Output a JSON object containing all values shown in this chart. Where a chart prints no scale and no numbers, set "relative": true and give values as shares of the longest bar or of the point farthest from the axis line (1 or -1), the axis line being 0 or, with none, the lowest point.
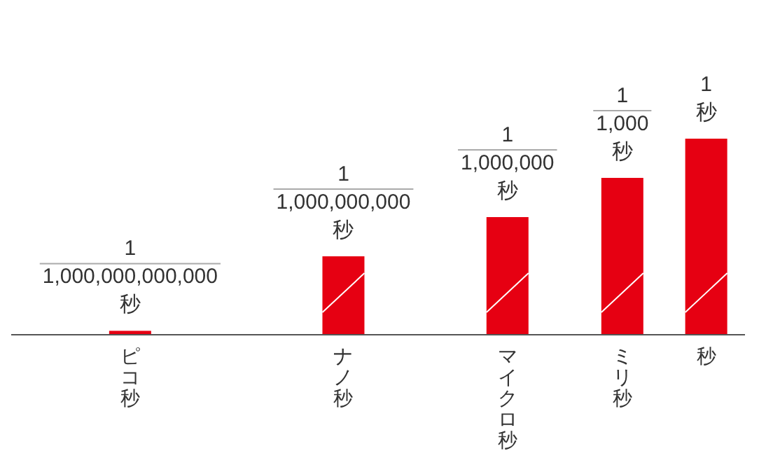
{
  "chart_data": {
    "type": "bar",
    "relative": true,
    "categories": [
      "ピコ秒",
      "ナノ秒",
      "マイクロ秒",
      "ミリ秒",
      "秒"
    ],
    "values": [
      0.02,
      0.4,
      0.6,
      0.8,
      1
    ],
    "color": "#e60012",
    "annotations": [
      "1\n1,000,000,000,000\n秒",
      "1\n1,000,000,000\n秒",
      "1\n1,000,000\n秒",
      "1\n1,000\n秒",
      "1\n秒"
    ]
  }
}
